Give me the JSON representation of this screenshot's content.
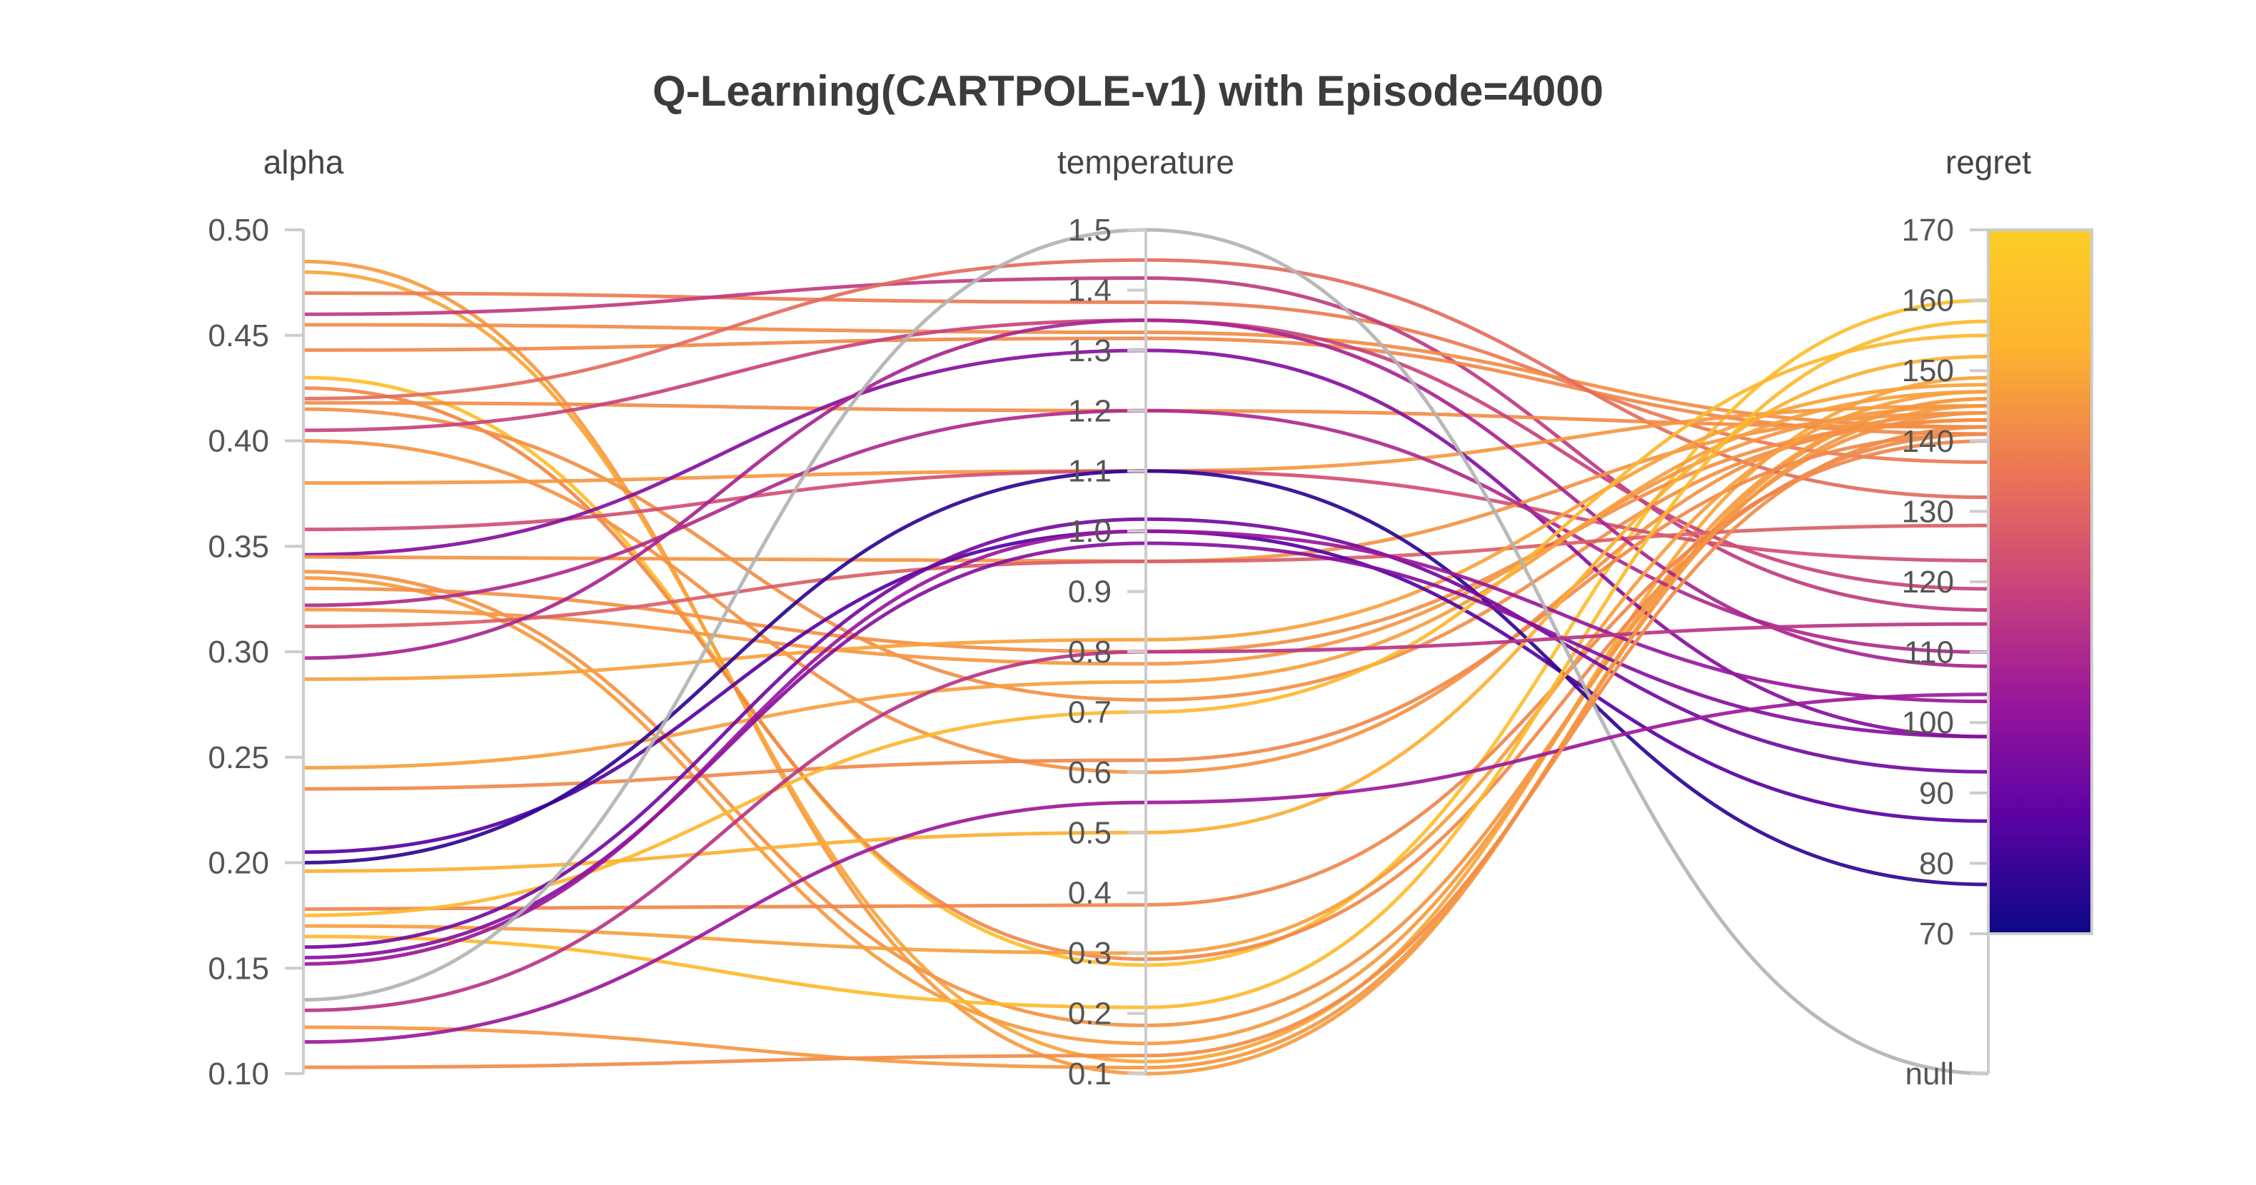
{
  "chart_data": {
    "type": "parallel_coordinates",
    "title": "Q-Learning(CARTPOLE-v1) with Episode=4000",
    "axes": [
      {
        "name": "alpha",
        "range": [
          0.1,
          0.5
        ],
        "ticks": [
          "0.10",
          "0.15",
          "0.20",
          "0.25",
          "0.30",
          "0.35",
          "0.40",
          "0.45",
          "0.50"
        ]
      },
      {
        "name": "temperature",
        "range": [
          0.1,
          1.5
        ],
        "ticks": [
          "0.1",
          "0.2",
          "0.3",
          "0.4",
          "0.5",
          "0.6",
          "0.7",
          "0.8",
          "0.9",
          "1.0",
          "1.1",
          "1.2",
          "1.3",
          "1.4",
          "1.5"
        ]
      },
      {
        "name": "regret",
        "range": [
          70,
          170
        ],
        "ticks": [
          "70",
          "80",
          "90",
          "100",
          "110",
          "120",
          "130",
          "140",
          "150",
          "160",
          "170"
        ],
        "null_label": "null",
        "colorscale": "plasma",
        "colorscale_stops": [
          "#0d0887",
          "#5b02a3",
          "#9a179b",
          "#cb4679",
          "#ed7953",
          "#fdb42f",
          "#fcce25"
        ]
      }
    ],
    "lines": [
      {
        "alpha": 0.485,
        "temperature": 0.1,
        "regret": 146
      },
      {
        "alpha": 0.48,
        "temperature": 0.12,
        "regret": 149
      },
      {
        "alpha": 0.47,
        "temperature": 1.38,
        "regret": 137
      },
      {
        "alpha": 0.46,
        "temperature": 1.42,
        "regret": 116
      },
      {
        "alpha": 0.455,
        "temperature": 1.33,
        "regret": 142
      },
      {
        "alpha": 0.443,
        "temperature": 1.32,
        "regret": 141
      },
      {
        "alpha": 0.43,
        "temperature": 0.28,
        "regret": 160
      },
      {
        "alpha": 0.425,
        "temperature": 0.29,
        "regret": 141
      },
      {
        "alpha": 0.42,
        "temperature": 1.45,
        "regret": 132
      },
      {
        "alpha": 0.418,
        "temperature": 1.2,
        "regret": 142
      },
      {
        "alpha": 0.415,
        "temperature": 0.72,
        "regret": 143
      },
      {
        "alpha": 0.405,
        "temperature": 1.35,
        "regret": 119
      },
      {
        "alpha": 0.4,
        "temperature": 0.6,
        "regret": 144
      },
      {
        "alpha": 0.38,
        "temperature": 1.1,
        "regret": 145
      },
      {
        "alpha": 0.358,
        "temperature": 1.1,
        "regret": 123
      },
      {
        "alpha": 0.346,
        "temperature": 1.3,
        "regret": 98
      },
      {
        "alpha": 0.345,
        "temperature": 0.95,
        "regret": 144
      },
      {
        "alpha": 0.338,
        "temperature": 0.18,
        "regret": 144
      },
      {
        "alpha": 0.335,
        "temperature": 0.15,
        "regret": 146
      },
      {
        "alpha": 0.33,
        "temperature": 0.8,
        "regret": 143
      },
      {
        "alpha": 0.322,
        "temperature": 1.2,
        "regret": 110
      },
      {
        "alpha": 0.32,
        "temperature": 0.78,
        "regret": 145
      },
      {
        "alpha": 0.312,
        "temperature": 0.95,
        "regret": 128
      },
      {
        "alpha": 0.297,
        "temperature": 1.35,
        "regret": 108
      },
      {
        "alpha": 0.287,
        "temperature": 0.82,
        "regret": 148
      },
      {
        "alpha": 0.245,
        "temperature": 0.75,
        "regret": 147
      },
      {
        "alpha": 0.235,
        "temperature": 0.62,
        "regret": 141
      },
      {
        "alpha": 0.205,
        "temperature": 1.0,
        "regret": 86
      },
      {
        "alpha": 0.2,
        "temperature": 1.1,
        "regret": 77
      },
      {
        "alpha": 0.196,
        "temperature": 0.5,
        "regret": 152
      },
      {
        "alpha": 0.178,
        "temperature": 0.38,
        "regret": 140
      },
      {
        "alpha": 0.175,
        "temperature": 0.7,
        "regret": 155
      },
      {
        "alpha": 0.17,
        "temperature": 0.3,
        "regret": 147
      },
      {
        "alpha": 0.165,
        "temperature": 0.21,
        "regret": 157
      },
      {
        "alpha": 0.16,
        "temperature": 1.02,
        "regret": 93
      },
      {
        "alpha": 0.155,
        "temperature": 0.98,
        "regret": 98
      },
      {
        "alpha": 0.152,
        "temperature": 1.0,
        "regret": 103
      },
      {
        "alpha": 0.135,
        "temperature": 1.5,
        "regret": null
      },
      {
        "alpha": 0.13,
        "temperature": 0.8,
        "regret": 114
      },
      {
        "alpha": 0.122,
        "temperature": 0.11,
        "regret": 145
      },
      {
        "alpha": 0.115,
        "temperature": 0.55,
        "regret": 104
      },
      {
        "alpha": 0.103,
        "temperature": 0.13,
        "regret": 142
      }
    ]
  }
}
